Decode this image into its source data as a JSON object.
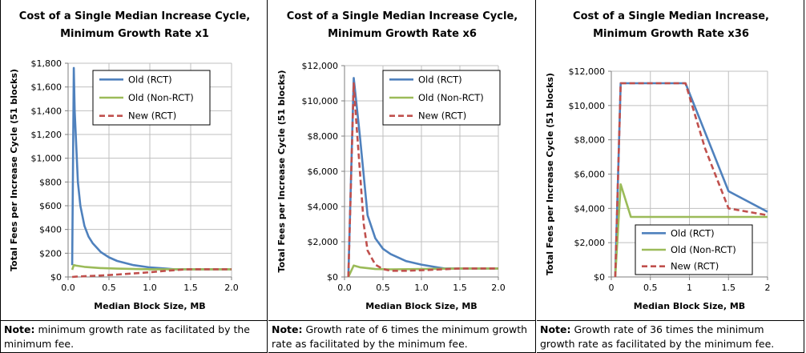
{
  "chart_data": [
    {
      "type": "line",
      "title": "Cost of a Single Median Increase Cycle,",
      "subtitle": "Minimum Growth Rate x1",
      "xlabel": "Median Block Size, MB",
      "ylabel": "Total Fees per Increase Cycle (51 blocks)",
      "xlim": [
        0,
        2
      ],
      "ylim": [
        0,
        1800
      ],
      "x_ticks": [
        "0.0",
        "0.5",
        "1.0",
        "1.5",
        "2.0"
      ],
      "y_ticks": [
        "$0",
        "$200",
        "$400",
        "$600",
        "$800",
        "$1,000",
        "$1,200",
        "$1,400",
        "$1,600",
        "$1,800"
      ],
      "grid": true,
      "legend_position": "top-right",
      "series": [
        {
          "name": "Old (RCT)",
          "color": "#4f81bd",
          "dash": "solid",
          "x": [
            0.05,
            0.07,
            0.08,
            0.1,
            0.12,
            0.15,
            0.2,
            0.25,
            0.3,
            0.4,
            0.5,
            0.6,
            0.8,
            1.0,
            1.2,
            1.3,
            1.5,
            2.0
          ],
          "y": [
            100,
            1760,
            1400,
            1100,
            800,
            600,
            430,
            340,
            285,
            210,
            165,
            135,
            100,
            80,
            70,
            65,
            65,
            65
          ]
        },
        {
          "name": "Old (Non-RCT)",
          "color": "#9bbb59",
          "dash": "solid",
          "x": [
            0.05,
            0.07,
            0.1,
            0.2,
            0.4,
            0.6,
            1.0,
            1.5,
            2.0
          ],
          "y": [
            60,
            100,
            95,
            85,
            75,
            70,
            65,
            65,
            65
          ]
        },
        {
          "name": "New (RCT)",
          "color": "#c0504d",
          "dash": "dashed",
          "x": [
            0.05,
            0.1,
            0.2,
            0.4,
            0.6,
            0.8,
            1.0,
            1.2,
            1.4,
            1.5,
            2.0
          ],
          "y": [
            0,
            3,
            6,
            12,
            20,
            30,
            40,
            52,
            62,
            65,
            65
          ]
        }
      ]
    },
    {
      "type": "line",
      "title": "Cost of a Single Median Increase Cycle,",
      "subtitle": "Minimum Growth Rate x6",
      "xlabel": "Median Block Size, MB",
      "ylabel": "Total Fees per Increase Cycle (51 blocks)",
      "xlim": [
        0,
        2
      ],
      "ylim": [
        0,
        12000
      ],
      "x_ticks": [
        "0.0",
        "0.5",
        "1.0",
        "1.5",
        "2.0"
      ],
      "y_ticks": [
        "$0",
        "$2,000",
        "$4,000",
        "$6,000",
        "$8,000",
        "$10,000",
        "$12,000"
      ],
      "grid": true,
      "legend_position": "top-right",
      "series": [
        {
          "name": "Old (RCT)",
          "color": "#4f81bd",
          "dash": "solid",
          "x": [
            0.05,
            0.12,
            0.2,
            0.3,
            0.4,
            0.5,
            0.6,
            0.8,
            1.0,
            1.2,
            1.3,
            1.5,
            2.0
          ],
          "y": [
            0,
            11300,
            8000,
            3500,
            2200,
            1600,
            1300,
            900,
            700,
            550,
            480,
            480,
            480
          ]
        },
        {
          "name": "Old (Non-RCT)",
          "color": "#9bbb59",
          "dash": "solid",
          "x": [
            0.05,
            0.12,
            0.2,
            0.4,
            0.6,
            1.0,
            1.5,
            2.0
          ],
          "y": [
            0,
            650,
            550,
            450,
            430,
            450,
            480,
            480
          ]
        },
        {
          "name": "New (RCT)",
          "color": "#c0504d",
          "dash": "dashed",
          "x": [
            0.05,
            0.12,
            0.15,
            0.2,
            0.25,
            0.3,
            0.4,
            0.5,
            0.6,
            0.8,
            1.0,
            1.2,
            1.5,
            2.0
          ],
          "y": [
            0,
            11000,
            9000,
            6000,
            3000,
            1500,
            700,
            450,
            350,
            350,
            380,
            420,
            480,
            480
          ]
        }
      ]
    },
    {
      "type": "line",
      "title": "Cost of a Single Median Increase,",
      "subtitle": "Minimum Growth Rate x36",
      "xlabel": "Median Block Size, MB",
      "ylabel": "Total Fees per Increase Cycle (51 blocks)",
      "xlim": [
        0,
        2
      ],
      "ylim": [
        0,
        12000
      ],
      "x_ticks": [
        "0",
        "0.5",
        "1",
        "1.5",
        "2"
      ],
      "y_ticks": [
        "$0",
        "$2,000",
        "$4,000",
        "$6,000",
        "$8,000",
        "$10,000",
        "$12,000"
      ],
      "grid": true,
      "legend_position": "bottom-right",
      "series": [
        {
          "name": "Old (RCT)",
          "color": "#4f81bd",
          "dash": "solid",
          "x": [
            0.05,
            0.12,
            0.5,
            0.95,
            1.5,
            2.0
          ],
          "y": [
            0,
            11300,
            11300,
            11300,
            5000,
            3800
          ]
        },
        {
          "name": "Old (Non-RCT)",
          "color": "#9bbb59",
          "dash": "solid",
          "x": [
            0.05,
            0.12,
            0.25,
            0.5,
            1.0,
            1.5,
            2.0
          ],
          "y": [
            0,
            5400,
            3500,
            3500,
            3500,
            3500,
            3500
          ]
        },
        {
          "name": "New (RCT)",
          "color": "#c0504d",
          "dash": "dashed",
          "x": [
            0.05,
            0.12,
            0.5,
            0.95,
            1.2,
            1.5,
            2.0
          ],
          "y": [
            0,
            11300,
            11300,
            11300,
            7500,
            4000,
            3600
          ]
        }
      ]
    }
  ],
  "notes": [
    {
      "label": "Note:",
      "text": " minimum growth rate as facilitated by the minimum fee."
    },
    {
      "label": "Note:",
      "text": " Growth rate of 6 times the minimum growth rate as facilitated by the minimum fee."
    },
    {
      "label": "Note:",
      "text": " Growth rate of 36 times the minimum growth rate as facilitated by the minimum fee."
    }
  ]
}
